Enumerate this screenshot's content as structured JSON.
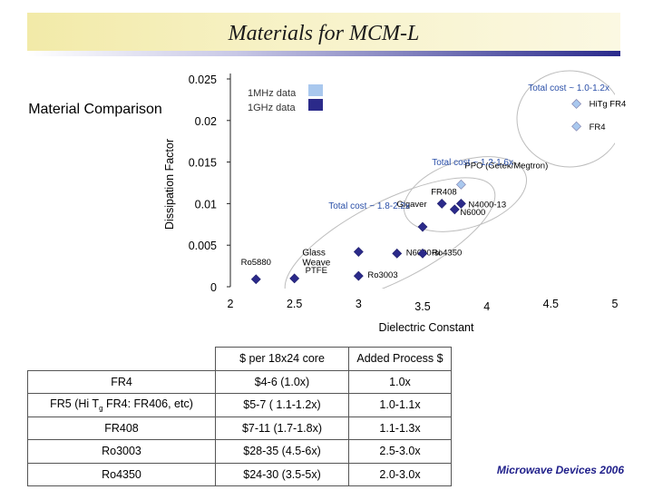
{
  "slide_title": "Materials for MCM-L",
  "side_label": "Material Comparison",
  "credit": "Microwave Devices 2006",
  "colors": {
    "data_1mhz": "#a9c8ee",
    "data_1ghz": "#2b2a8a",
    "ellipse": "#bdbdbd",
    "title_band": "#f2eaa8",
    "title_rule": "#2a2a8c",
    "credit": "#1f1f8a"
  },
  "chart_data": {
    "type": "scatter",
    "title": "",
    "xlabel": "Dielectric Constant",
    "ylabel": "Dissipation Factor",
    "xlim": [
      2,
      5
    ],
    "ylim": [
      0,
      0.025
    ],
    "x_ticks": [
      2,
      2.5,
      3,
      3.5,
      4,
      4.5,
      5
    ],
    "y_ticks": [
      0,
      0.005,
      0.01,
      0.015,
      0.02,
      0.025
    ],
    "x_tick_labels": [
      "2",
      "2.5",
      "3",
      "3.5",
      "4",
      "4.5",
      "5"
    ],
    "y_tick_labels": [
      "0",
      "0.005",
      "0.01",
      "0.015",
      "0.02",
      "0.025"
    ],
    "grid": false,
    "legend_position": "top-left",
    "series": [
      {
        "name": "1MHz data",
        "points": [
          {
            "label": "HiTg FR4",
            "x": 4.7,
            "y": 0.022
          },
          {
            "label": "FR4",
            "x": 4.7,
            "y": 0.0193
          },
          {
            "label": "PPO (Getek/Megtron)",
            "x": 3.8,
            "y": 0.0123
          }
        ]
      },
      {
        "name": "1GHz data",
        "points": [
          {
            "label": "Ro5880",
            "x": 2.2,
            "y": 0.0009
          },
          {
            "label": "PTFE",
            "x": 2.5,
            "y": 0.001
          },
          {
            "label": "Ro3003",
            "x": 3.0,
            "y": 0.0013
          },
          {
            "label": "Glass Weave",
            "x": 3.0,
            "y": 0.0042
          },
          {
            "label": "N6000-si",
            "x": 3.3,
            "y": 0.004
          },
          {
            "label": "Ro4350",
            "x": 3.5,
            "y": 0.004
          },
          {
            "label": "Gigaver",
            "x": 3.5,
            "y": 0.0072
          },
          {
            "label": "N6000",
            "x": 3.75,
            "y": 0.0093
          },
          {
            "label": "FR408",
            "x": 3.65,
            "y": 0.01
          },
          {
            "label": "N4000-13",
            "x": 3.8,
            "y": 0.01
          }
        ]
      }
    ],
    "annotations": [
      {
        "text": "Total cost ~ 1.0-1.2x"
      },
      {
        "text": "Total cost ~ 1.2-1.6x"
      },
      {
        "text": "Total cost ~ 1.8-2.2x"
      }
    ]
  },
  "table": {
    "headers": [
      "",
      "$ per 18x24 core",
      "Added Process $"
    ],
    "rows": [
      {
        "name": "FR4",
        "cost": "$4-6 (1.0x)",
        "process": "1.0x"
      },
      {
        "name": "FR5 (Hi Tg FR4: FR406, etc)",
        "cost": "$5-7 ( 1.1-1.2x)",
        "process": "1.0-1.1x"
      },
      {
        "name": "FR408",
        "cost": "$7-11 (1.7-1.8x)",
        "process": "1.1-1.3x"
      },
      {
        "name": "Ro3003",
        "cost": "$28-35 (4.5-6x)",
        "process": "2.5-3.0x"
      },
      {
        "name": "Ro4350",
        "cost": "$24-30 (3.5-5x)",
        "process": "2.0-3.0x"
      }
    ]
  }
}
